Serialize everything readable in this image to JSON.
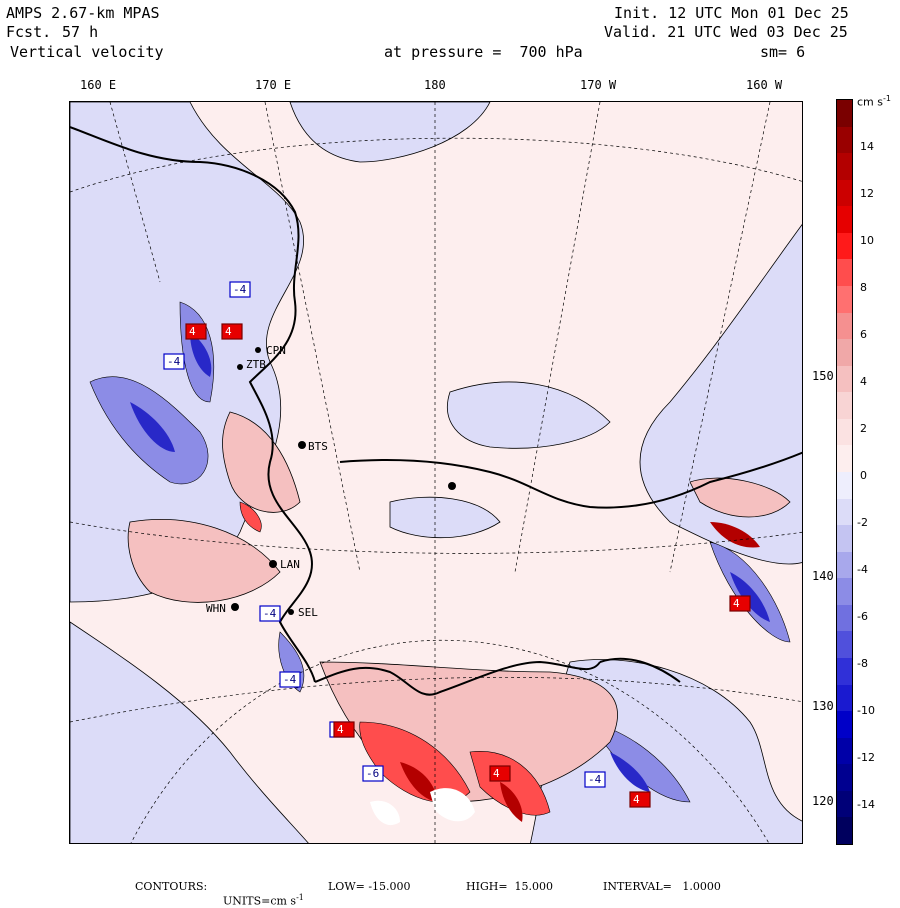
{
  "header": {
    "model": "AMPS 2.67-km MPAS",
    "fcst_label": "Fcst.",
    "fcst_value": "57 h",
    "field": "Vertical velocity",
    "init": "Init. 12 UTC Mon 01 Dec 25",
    "valid": "Valid. 21 UTC Wed 03 Dec 25",
    "pressure": "at pressure =  700 hPa",
    "smooth": "sm= 6"
  },
  "lon_labels": [
    "160 E",
    "170 E",
    "180",
    "170 W",
    "160 W"
  ],
  "lat_labels": [
    "150 W",
    "140 W",
    "130 W",
    "120 W"
  ],
  "stations": [
    "CPN",
    "ZTB",
    "BTS",
    "LAN",
    "WHN",
    "SEL"
  ],
  "colorbar": {
    "unit": "cm s",
    "unit_exp": "-1",
    "tick_labels": [
      "14",
      "12",
      "10",
      "8",
      "6",
      "4",
      "2",
      "0",
      "-2",
      "-4",
      "-6",
      "-8",
      "-10",
      "-12",
      "-14"
    ],
    "colors": [
      "#7a0000",
      "#990000",
      "#b30000",
      "#cc0000",
      "#e60000",
      "#ff1a1a",
      "#ff4d4d",
      "#ff7070",
      "#f59090",
      "#f0a8a8",
      "#f5c0c0",
      "#f8d4d4",
      "#fbe2e2",
      "#fdeeee",
      "#eeeefd",
      "#dcdcf8",
      "#c4c4f2",
      "#a8a8ec",
      "#8c8ce6",
      "#7070e0",
      "#5050dc",
      "#3030d8",
      "#1a1ad0",
      "#0000c8",
      "#0000a8",
      "#000090",
      "#000078",
      "#00005e"
    ]
  },
  "footer": {
    "contours": "CONTOURS:",
    "units_label": "UNITS=cm s",
    "units_exp": "-1",
    "low": "LOW= -15.000",
    "high": "HIGH=  15.000",
    "interval": "INTERVAL=   1.0000"
  },
  "box_labels": [
    "-4",
    "4",
    "-4",
    "4",
    "-4",
    "-8",
    "4",
    "-6",
    "4",
    "-4",
    "4",
    "-4",
    "4"
  ]
}
